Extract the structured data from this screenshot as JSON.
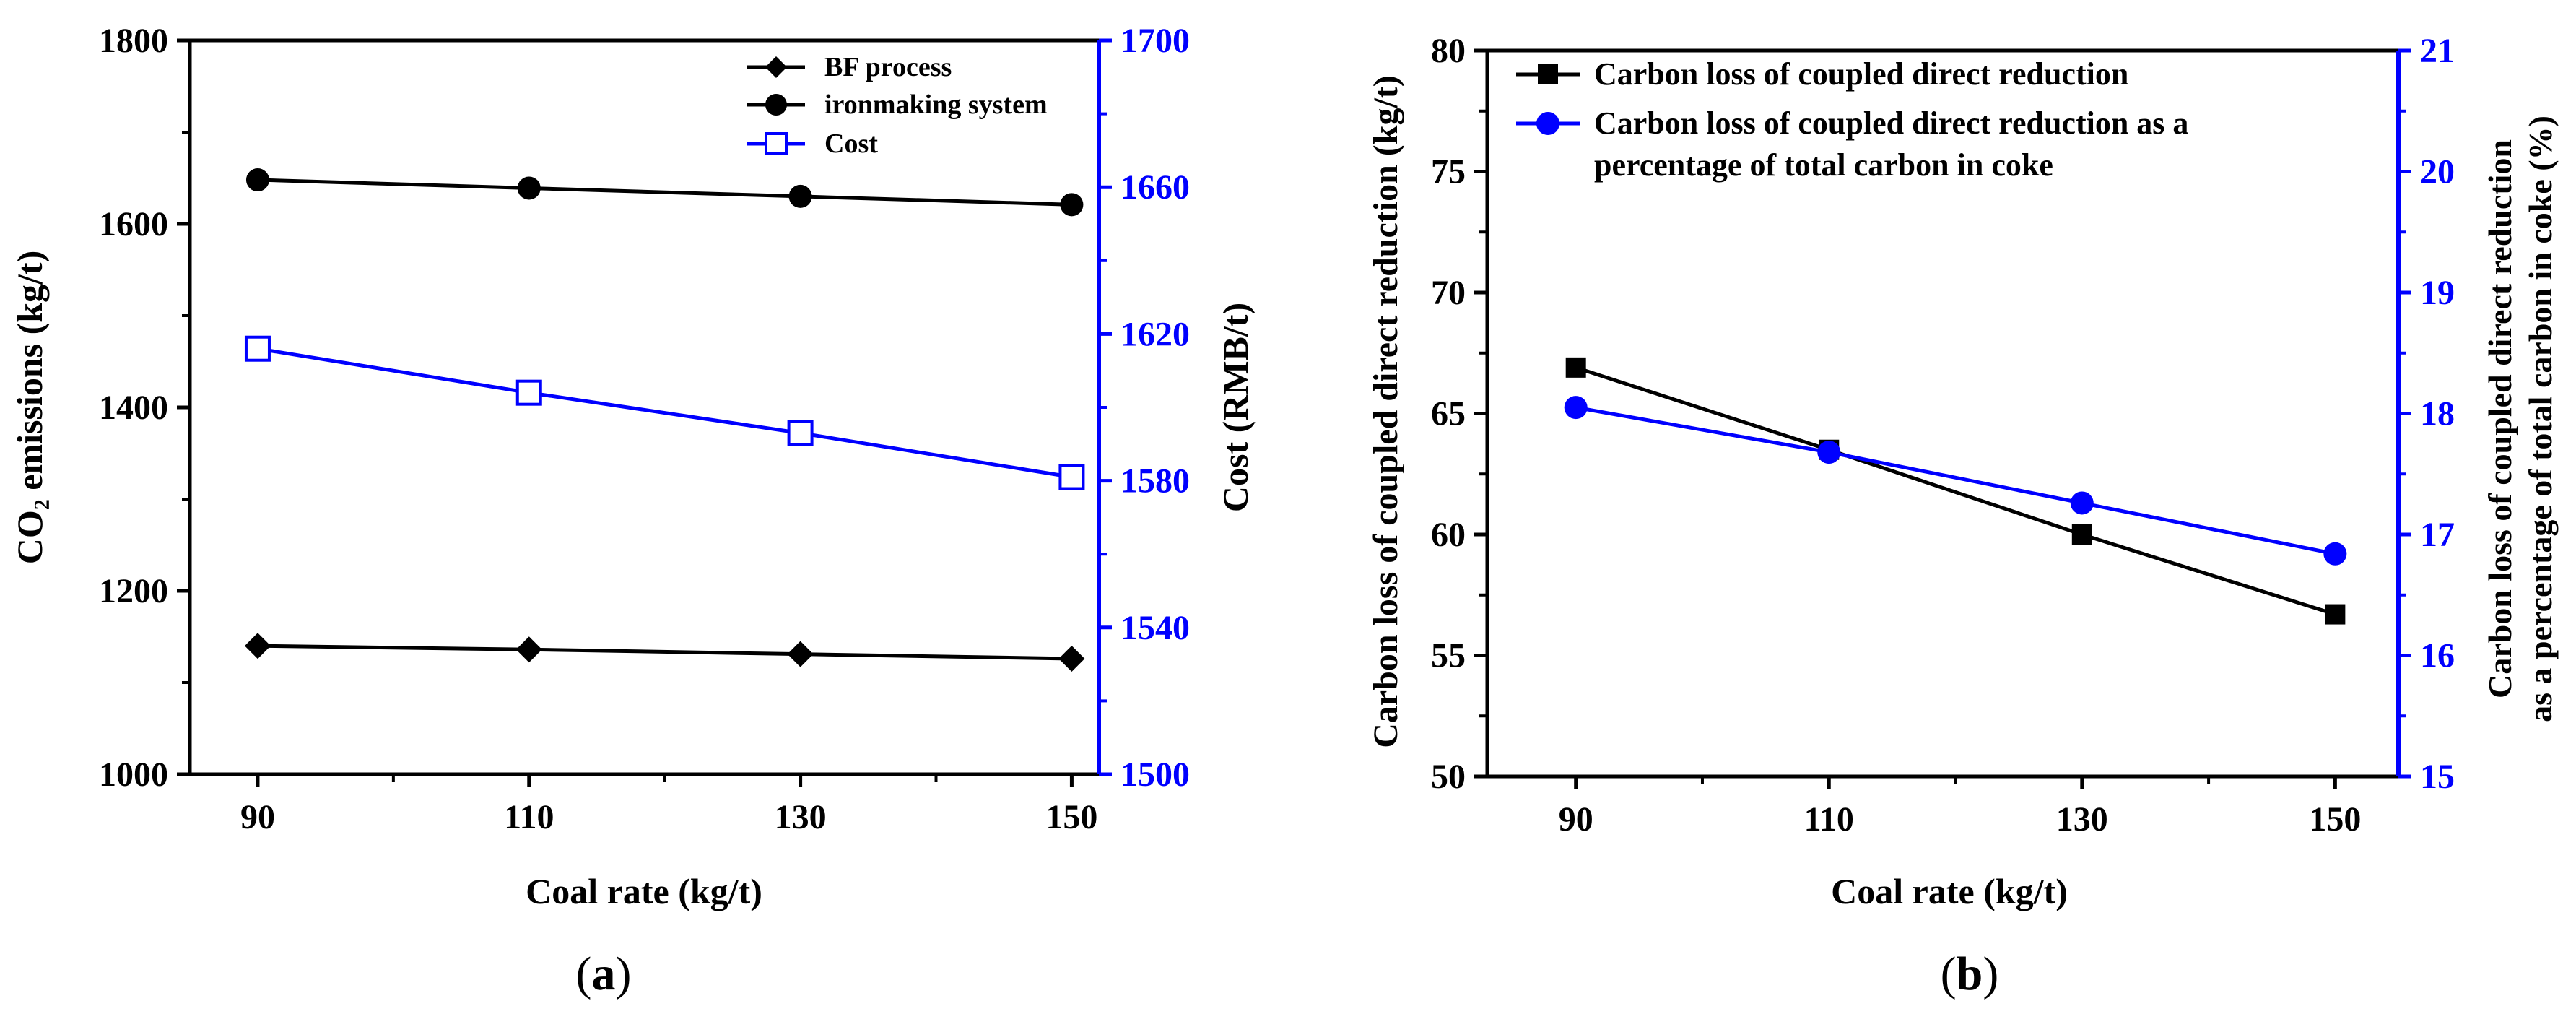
{
  "chart_data": [
    {
      "type": "line",
      "panel_label": "a",
      "xlabel": "Coal rate (kg/t)",
      "ylabel_left": "CO₂ emissions (kg/t)",
      "ylabel_right": "Cost (RMB/t)",
      "x": [
        90,
        110,
        130,
        150
      ],
      "x_ticks": [
        "90",
        "110",
        "130",
        "150"
      ],
      "xlim": [
        85,
        152
      ],
      "ylim_left": [
        1000,
        1800
      ],
      "ylim_right": [
        1500,
        1700
      ],
      "y_ticks_left": [
        "1000",
        "1200",
        "1400",
        "1600",
        "1800"
      ],
      "y_ticks_right": [
        "1500",
        "1540",
        "1580",
        "1620",
        "1660",
        "1700"
      ],
      "left_axis_color": "#000000",
      "right_axis_color": "#0000ff",
      "legend_position": "top-right",
      "series": [
        {
          "name": "BF process",
          "axis": "left",
          "color": "#000000",
          "marker": "diamond",
          "values": [
            1140,
            1136,
            1131,
            1126
          ]
        },
        {
          "name": "ironmaking system",
          "axis": "left",
          "color": "#000000",
          "marker": "circle",
          "values": [
            1648,
            1639,
            1630,
            1621
          ]
        },
        {
          "name": "Cost",
          "axis": "right",
          "color": "#0000ff",
          "marker": "open-square",
          "values": [
            1616,
            1604,
            1593,
            1581
          ]
        }
      ]
    },
    {
      "type": "line",
      "panel_label": "b",
      "xlabel": "Coal rate (kg/t)",
      "ylabel_left": "Carbon loss of coupled direct reduction (kg/t)",
      "ylabel_right_lines": [
        "Carbon loss of coupled direct reduction",
        "as a percentage of total carbon in coke (%)"
      ],
      "x": [
        90,
        110,
        130,
        150
      ],
      "x_ticks": [
        "90",
        "110",
        "130",
        "150"
      ],
      "xlim": [
        83,
        155
      ],
      "ylim_left": [
        50,
        80
      ],
      "ylim_right": [
        15,
        21
      ],
      "y_ticks_left": [
        "50",
        "55",
        "60",
        "65",
        "70",
        "75",
        "80"
      ],
      "y_ticks_right": [
        "15",
        "16",
        "17",
        "18",
        "19",
        "20",
        "21"
      ],
      "left_axis_color": "#000000",
      "right_axis_color": "#0000ff",
      "legend_position": "top-left",
      "series": [
        {
          "name_lines": [
            "Carbon loss of coupled direct reduction"
          ],
          "axis": "left",
          "color": "#000000",
          "marker": "square",
          "values": [
            66.9,
            63.5,
            60.0,
            56.7
          ]
        },
        {
          "name_lines": [
            "Carbon loss of coupled direct reduction as a",
            "percentage of total carbon in coke"
          ],
          "axis": "right",
          "color": "#0000ff",
          "marker": "circle",
          "values": [
            18.05,
            17.68,
            17.26,
            16.84
          ]
        }
      ]
    }
  ]
}
